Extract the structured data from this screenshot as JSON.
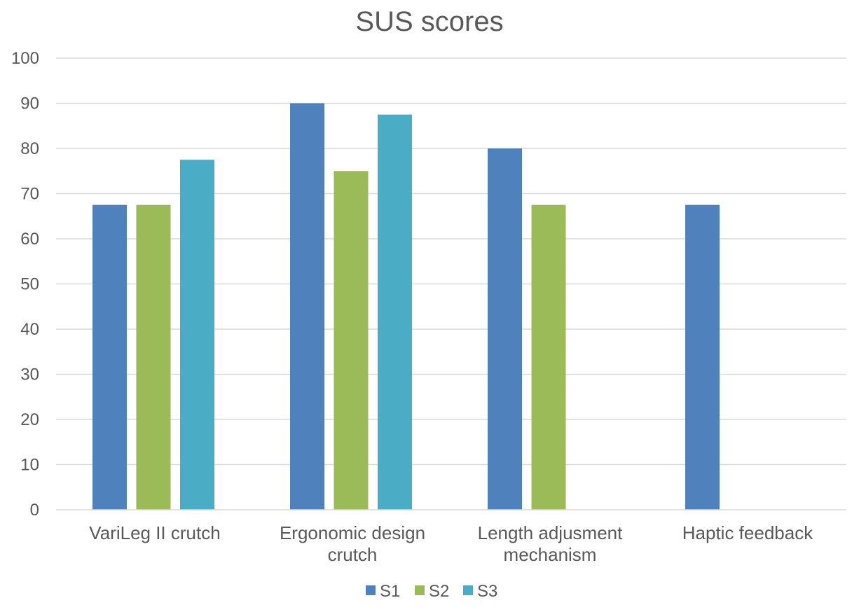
{
  "chart_data": {
    "type": "bar",
    "title": "SUS scores",
    "xlabel": "",
    "ylabel": "",
    "ylim": [
      0,
      100
    ],
    "yticks": [
      0,
      10,
      20,
      30,
      40,
      50,
      60,
      70,
      80,
      90,
      100
    ],
    "grid": true,
    "legend_position": "bottom",
    "categories": [
      [
        "VariLeg II crutch"
      ],
      [
        "Ergonomic design",
        "crutch"
      ],
      [
        "Length adjusment",
        "mechanism"
      ],
      [
        "Haptic feedback"
      ]
    ],
    "series": [
      {
        "name": "S1",
        "color": "#4f81bd",
        "values": [
          67.5,
          90,
          80,
          67.5
        ]
      },
      {
        "name": "S2",
        "color": "#9bbb59",
        "values": [
          67.5,
          75,
          67.5,
          null
        ]
      },
      {
        "name": "S3",
        "color": "#4bacc6",
        "values": [
          77.5,
          87.5,
          null,
          null
        ]
      }
    ]
  }
}
